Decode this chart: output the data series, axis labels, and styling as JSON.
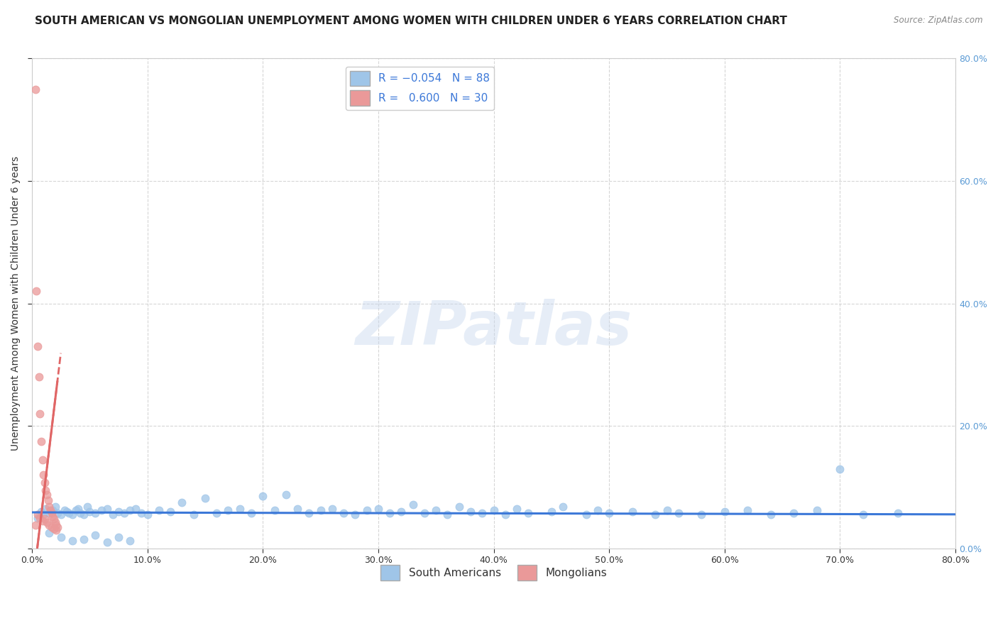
{
  "title": "SOUTH AMERICAN VS MONGOLIAN UNEMPLOYMENT AMONG WOMEN WITH CHILDREN UNDER 6 YEARS CORRELATION CHART",
  "source_text": "Source: ZipAtlas.com",
  "ylabel": "Unemployment Among Women with Children Under 6 years",
  "watermark": "ZIPatlas",
  "xlim": [
    0.0,
    0.8
  ],
  "ylim": [
    0.0,
    0.8
  ],
  "xticks": [
    0.0,
    0.1,
    0.2,
    0.3,
    0.4,
    0.5,
    0.6,
    0.7,
    0.8
  ],
  "xticklabels": [
    "0.0%",
    "10.0%",
    "20.0%",
    "30.0%",
    "40.0%",
    "50.0%",
    "60.0%",
    "70.0%",
    "80.0%"
  ],
  "yticks_left": [
    0.0,
    0.2,
    0.4,
    0.6,
    0.8
  ],
  "yticklabels_left": [
    "",
    "",
    "",
    "",
    ""
  ],
  "yticks_right": [
    0.0,
    0.2,
    0.4,
    0.6,
    0.8
  ],
  "yticklabels_right": [
    "0.0%",
    "20.0%",
    "40.0%",
    "60.0%",
    "80.0%"
  ],
  "south_american_R": -0.054,
  "south_american_N": 88,
  "mongolian_R": 0.6,
  "mongolian_N": 30,
  "sa_color": "#9fc5e8",
  "sa_color_fill": "#9fc5e8",
  "sa_color_line": "#3c78d8",
  "mongolian_color": "#ea9999",
  "mongolian_color_fill": "#ea9999",
  "mongolian_color_line": "#e06666",
  "legend_sa_color": "#9fc5e8",
  "legend_mn_color": "#ea9999",
  "background_color": "#ffffff",
  "grid_color": "#cccccc",
  "title_fontsize": 11,
  "axis_label_fontsize": 10,
  "tick_fontsize": 9,
  "legend_fontsize": 11,
  "sa_x": [
    0.005,
    0.008,
    0.01,
    0.012,
    0.015,
    0.018,
    0.02,
    0.022,
    0.025,
    0.028,
    0.03,
    0.032,
    0.035,
    0.038,
    0.04,
    0.042,
    0.045,
    0.048,
    0.05,
    0.055,
    0.06,
    0.065,
    0.07,
    0.075,
    0.08,
    0.085,
    0.09,
    0.095,
    0.1,
    0.11,
    0.12,
    0.13,
    0.14,
    0.15,
    0.16,
    0.17,
    0.18,
    0.19,
    0.2,
    0.21,
    0.22,
    0.23,
    0.24,
    0.25,
    0.26,
    0.27,
    0.28,
    0.29,
    0.3,
    0.31,
    0.32,
    0.33,
    0.34,
    0.35,
    0.36,
    0.37,
    0.38,
    0.39,
    0.4,
    0.41,
    0.42,
    0.43,
    0.45,
    0.46,
    0.48,
    0.49,
    0.5,
    0.52,
    0.54,
    0.55,
    0.56,
    0.58,
    0.6,
    0.62,
    0.64,
    0.66,
    0.68,
    0.7,
    0.72,
    0.75,
    0.015,
    0.025,
    0.035,
    0.045,
    0.055,
    0.065,
    0.075,
    0.085
  ],
  "sa_y": [
    0.05,
    0.06,
    0.055,
    0.065,
    0.058,
    0.062,
    0.068,
    0.058,
    0.055,
    0.062,
    0.06,
    0.058,
    0.055,
    0.062,
    0.065,
    0.058,
    0.055,
    0.068,
    0.06,
    0.058,
    0.062,
    0.065,
    0.055,
    0.06,
    0.058,
    0.062,
    0.065,
    0.058,
    0.055,
    0.062,
    0.06,
    0.075,
    0.055,
    0.082,
    0.058,
    0.062,
    0.065,
    0.058,
    0.085,
    0.062,
    0.088,
    0.065,
    0.058,
    0.062,
    0.065,
    0.058,
    0.055,
    0.062,
    0.065,
    0.058,
    0.06,
    0.072,
    0.058,
    0.062,
    0.055,
    0.068,
    0.06,
    0.058,
    0.062,
    0.055,
    0.065,
    0.058,
    0.06,
    0.068,
    0.055,
    0.062,
    0.058,
    0.06,
    0.055,
    0.062,
    0.058,
    0.055,
    0.06,
    0.062,
    0.055,
    0.058,
    0.062,
    0.13,
    0.055,
    0.058,
    0.025,
    0.018,
    0.012,
    0.015,
    0.022,
    0.01,
    0.018,
    0.012
  ],
  "mn_x": [
    0.003,
    0.004,
    0.005,
    0.006,
    0.007,
    0.008,
    0.009,
    0.01,
    0.011,
    0.012,
    0.013,
    0.014,
    0.015,
    0.016,
    0.017,
    0.018,
    0.019,
    0.02,
    0.021,
    0.022,
    0.005,
    0.007,
    0.009,
    0.011,
    0.013,
    0.015,
    0.017,
    0.019,
    0.021,
    0.003
  ],
  "mn_y": [
    0.75,
    0.42,
    0.33,
    0.28,
    0.22,
    0.175,
    0.145,
    0.12,
    0.108,
    0.095,
    0.088,
    0.078,
    0.068,
    0.062,
    0.058,
    0.052,
    0.048,
    0.042,
    0.038,
    0.035,
    0.055,
    0.05,
    0.045,
    0.048,
    0.042,
    0.038,
    0.035,
    0.032,
    0.03,
    0.038
  ]
}
